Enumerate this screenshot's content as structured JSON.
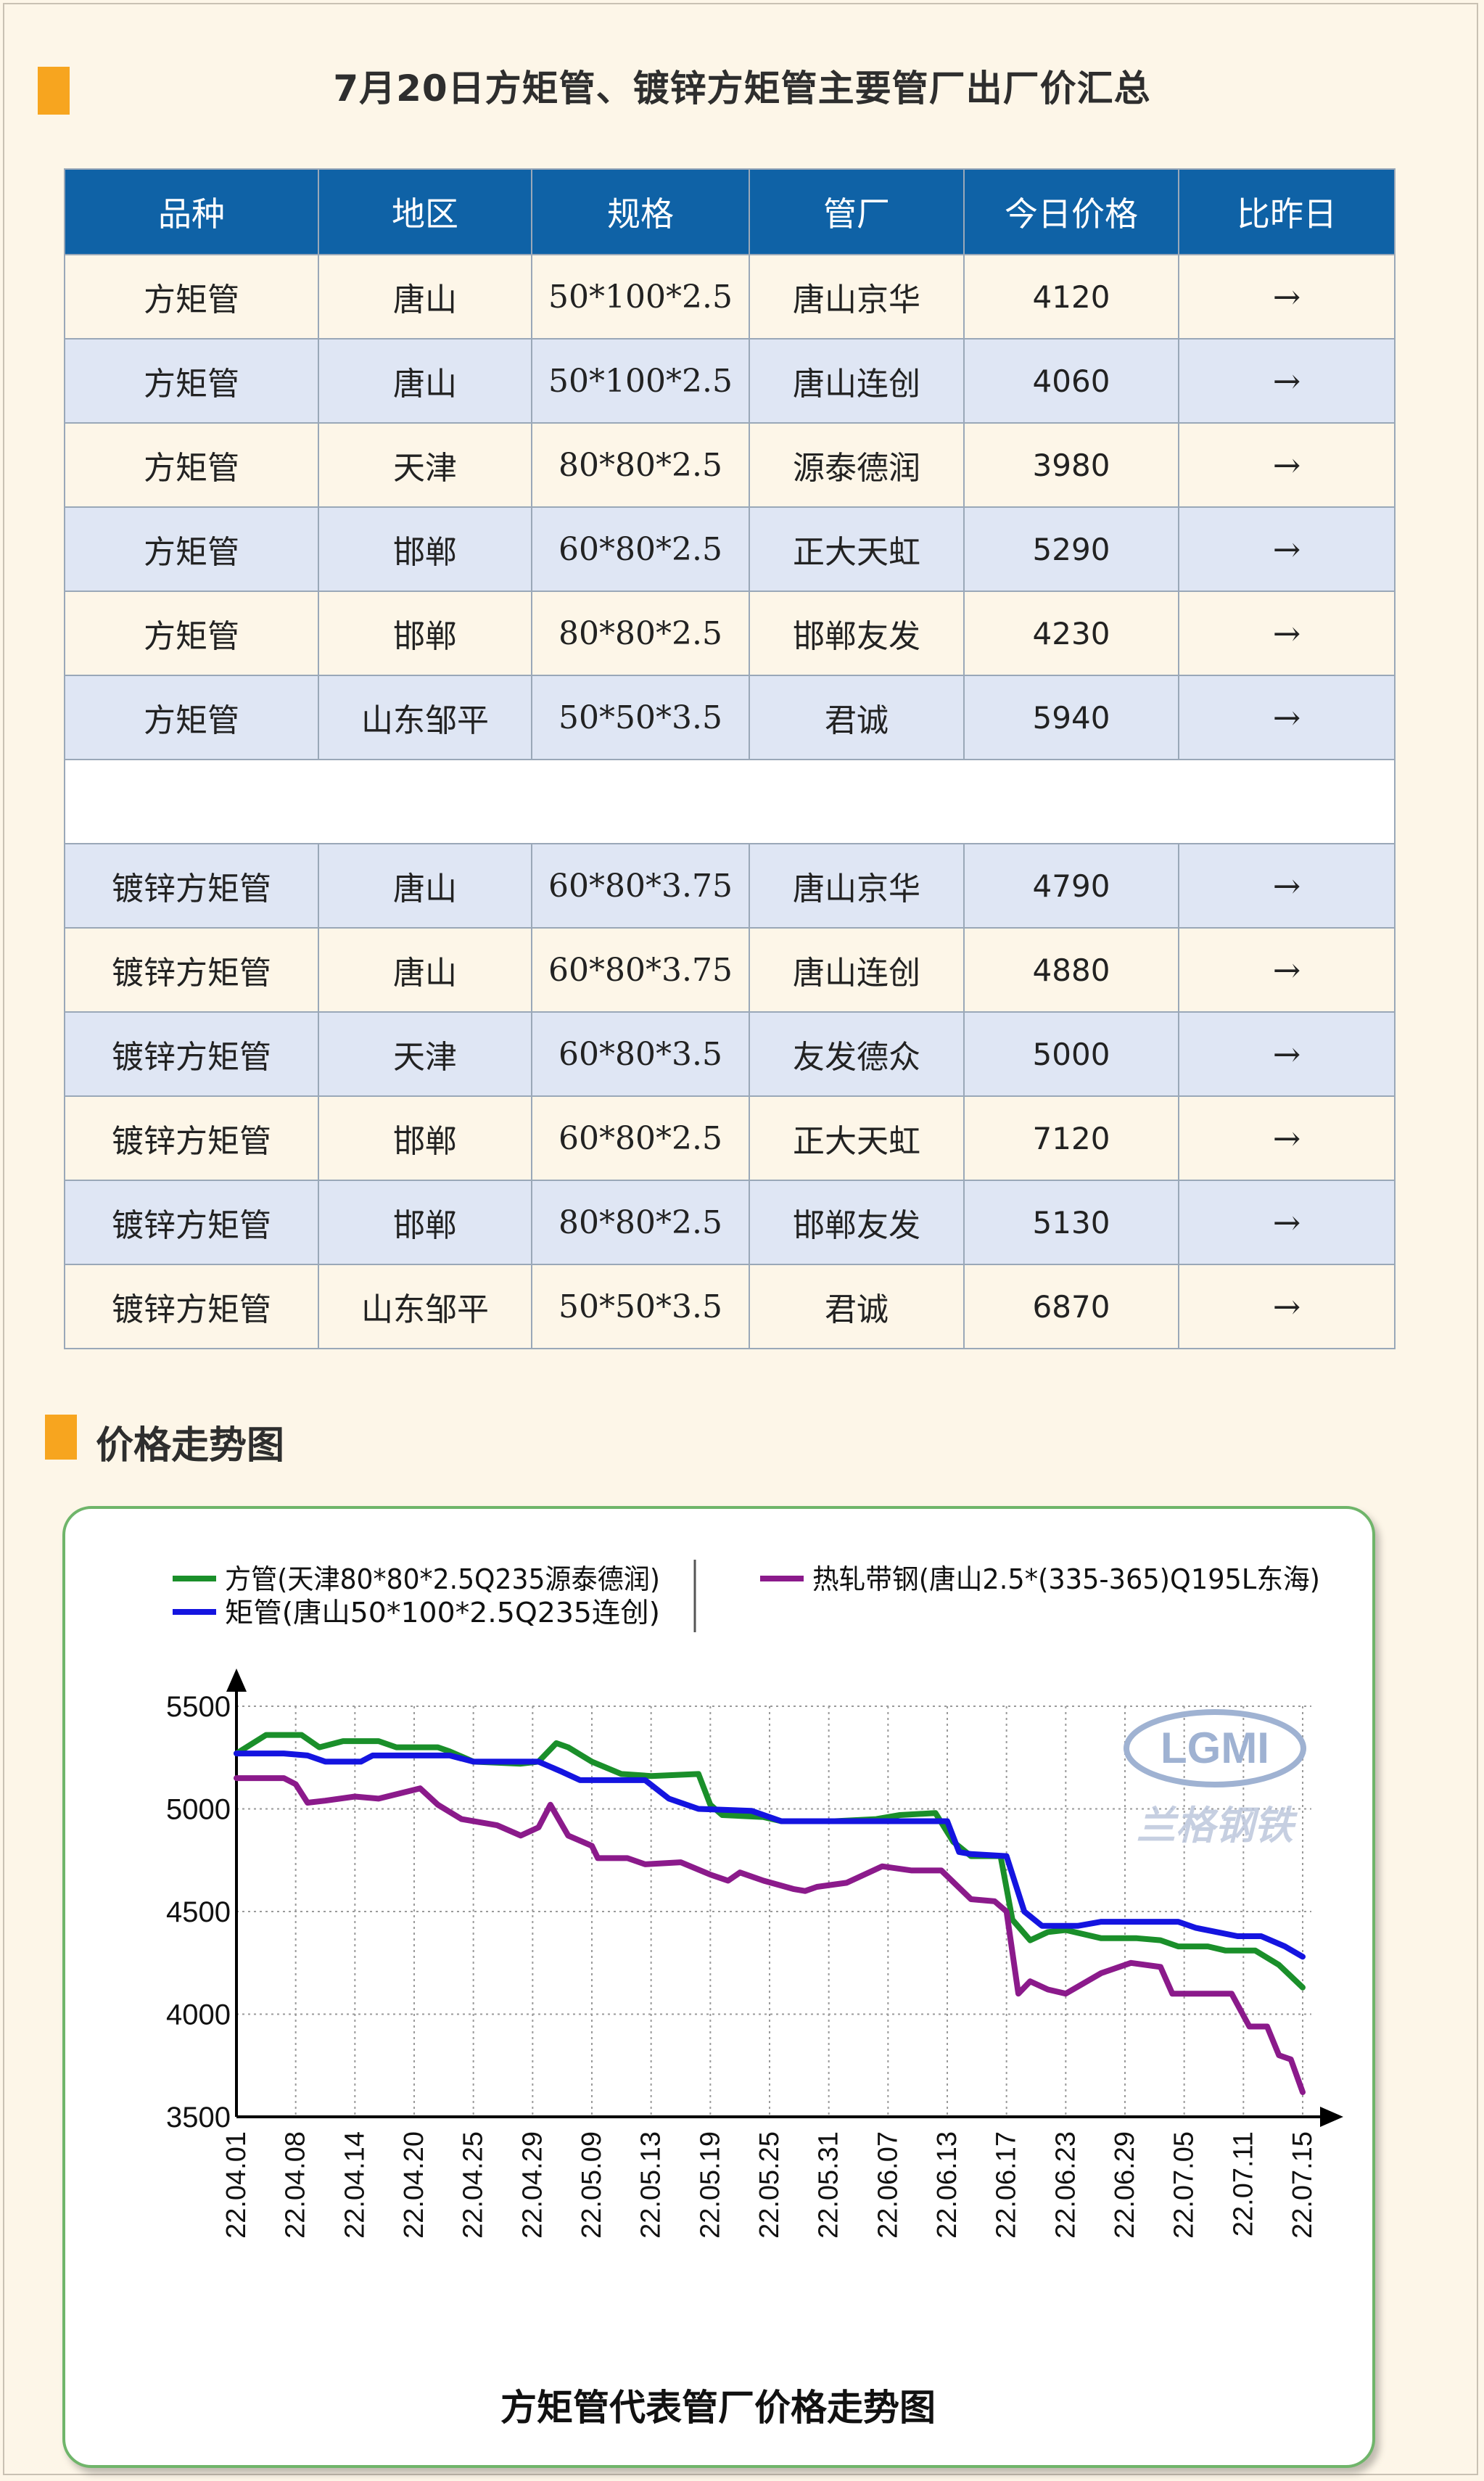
{
  "header": {
    "title": "7月20日方矩管、镀锌方矩管主要管厂出厂价汇总"
  },
  "table": {
    "headers": [
      "品种",
      "地区",
      "规格",
      "管厂",
      "今日价格",
      "比昨日"
    ],
    "rows": [
      [
        "方矩管",
        "唐山",
        "50*100*2.5",
        "唐山京华",
        "4120",
        "→"
      ],
      [
        "方矩管",
        "唐山",
        "50*100*2.5",
        "唐山连创",
        "4060",
        "→"
      ],
      [
        "方矩管",
        "天津",
        "80*80*2.5",
        "源泰德润",
        "3980",
        "→"
      ],
      [
        "方矩管",
        "邯郸",
        "60*80*2.5",
        "正大天虹",
        "5290",
        "→"
      ],
      [
        "方矩管",
        "邯郸",
        "80*80*2.5",
        "邯郸友发",
        "4230",
        "→"
      ],
      [
        "方矩管",
        "山东邹平",
        "50*50*3.5",
        "君诚",
        "5940",
        "→"
      ],
      [
        "镀锌方矩管",
        "唐山",
        "60*80*3.75",
        "唐山京华",
        "4790",
        "→"
      ],
      [
        "镀锌方矩管",
        "唐山",
        "60*80*3.75",
        "唐山连创",
        "4880",
        "→"
      ],
      [
        "镀锌方矩管",
        "天津",
        "60*80*3.5",
        "友发德众",
        "5000",
        "→"
      ],
      [
        "镀锌方矩管",
        "邯郸",
        "60*80*2.5",
        "正大天虹",
        "7120",
        "→"
      ],
      [
        "镀锌方矩管",
        "邯郸",
        "80*80*2.5",
        "邯郸友发",
        "5130",
        "→"
      ],
      [
        "镀锌方矩管",
        "山东邹平",
        "50*50*3.5",
        "君诚",
        "6870",
        "→"
      ]
    ]
  },
  "section2": {
    "title": "价格走势图"
  },
  "chart_data": {
    "type": "line",
    "title": "方矩管代表管厂价格走势图",
    "watermark": {
      "logo": "LGMI",
      "text": "兰格钢铁"
    },
    "ylim": [
      3500,
      5500
    ],
    "yticks": [
      "5500",
      "5000",
      "4500",
      "4000",
      "3500"
    ],
    "xticks": [
      "22.04.01",
      "22.04.08",
      "22.04.14",
      "22.04.20",
      "22.04.25",
      "22.04.29",
      "22.05.09",
      "22.05.13",
      "22.05.19",
      "22.05.25",
      "22.05.31",
      "22.06.07",
      "22.06.13",
      "22.06.17",
      "22.06.23",
      "22.06.29",
      "22.07.05",
      "22.07.11",
      "22.07.15"
    ],
    "grid": true,
    "legend_position": "top",
    "series": [
      {
        "name": "方管(天津80*80*2.5Q235源泰德润)",
        "color": "#1a8f2a",
        "values": [
          [
            0,
            5270
          ],
          [
            0.5,
            5360
          ],
          [
            1.1,
            5360
          ],
          [
            1.4,
            5300
          ],
          [
            1.8,
            5330
          ],
          [
            2.4,
            5330
          ],
          [
            2.7,
            5300
          ],
          [
            3.4,
            5300
          ],
          [
            3.6,
            5280
          ],
          [
            4,
            5230
          ],
          [
            4.8,
            5220
          ],
          [
            5.1,
            5230
          ],
          [
            5.4,
            5320
          ],
          [
            5.6,
            5300
          ],
          [
            6,
            5230
          ],
          [
            6.5,
            5170
          ],
          [
            7,
            5160
          ],
          [
            7.8,
            5170
          ],
          [
            8,
            5020
          ],
          [
            8.2,
            4970
          ],
          [
            8.9,
            4960
          ],
          [
            9.2,
            4940
          ],
          [
            10.1,
            4940
          ],
          [
            10.8,
            4950
          ],
          [
            11.2,
            4970
          ],
          [
            11.8,
            4980
          ],
          [
            12.1,
            4840
          ],
          [
            12.4,
            4770
          ],
          [
            12.9,
            4770
          ],
          [
            13.1,
            4460
          ],
          [
            13.4,
            4360
          ],
          [
            13.7,
            4400
          ],
          [
            14,
            4410
          ],
          [
            14.6,
            4370
          ],
          [
            15.2,
            4370
          ],
          [
            15.6,
            4360
          ],
          [
            15.9,
            4330
          ],
          [
            16.4,
            4330
          ],
          [
            16.7,
            4310
          ],
          [
            17.2,
            4310
          ],
          [
            17.6,
            4240
          ],
          [
            18,
            4130
          ]
        ]
      },
      {
        "name": "矩管(唐山50*100*2.5Q235连创)",
        "color": "#1414e0",
        "values": [
          [
            0,
            5270
          ],
          [
            0.8,
            5270
          ],
          [
            1.2,
            5260
          ],
          [
            1.5,
            5230
          ],
          [
            2.1,
            5230
          ],
          [
            2.3,
            5260
          ],
          [
            3.6,
            5260
          ],
          [
            4,
            5230
          ],
          [
            5.1,
            5230
          ],
          [
            5.5,
            5180
          ],
          [
            5.8,
            5140
          ],
          [
            6.9,
            5140
          ],
          [
            7.3,
            5050
          ],
          [
            7.8,
            5000
          ],
          [
            8.7,
            4990
          ],
          [
            9.2,
            4940
          ],
          [
            12,
            4940
          ],
          [
            12.2,
            4790
          ],
          [
            12.4,
            4780
          ],
          [
            13,
            4770
          ],
          [
            13.3,
            4500
          ],
          [
            13.6,
            4430
          ],
          [
            14.2,
            4430
          ],
          [
            14.6,
            4450
          ],
          [
            15.9,
            4450
          ],
          [
            16.2,
            4420
          ],
          [
            16.9,
            4380
          ],
          [
            17.3,
            4380
          ],
          [
            17.7,
            4330
          ],
          [
            18,
            4280
          ]
        ]
      },
      {
        "name": "热轧带钢(唐山2.5*(335-365)Q195L东海)",
        "color": "#8b1a8b",
        "values": [
          [
            0,
            5150
          ],
          [
            0.8,
            5150
          ],
          [
            1,
            5120
          ],
          [
            1.2,
            5030
          ],
          [
            1.5,
            5040
          ],
          [
            2,
            5060
          ],
          [
            2.4,
            5050
          ],
          [
            3.1,
            5100
          ],
          [
            3.4,
            5020
          ],
          [
            3.8,
            4950
          ],
          [
            4.4,
            4920
          ],
          [
            4.8,
            4870
          ],
          [
            5.1,
            4910
          ],
          [
            5.3,
            5020
          ],
          [
            5.6,
            4870
          ],
          [
            6,
            4820
          ],
          [
            6.1,
            4760
          ],
          [
            6.6,
            4760
          ],
          [
            6.9,
            4730
          ],
          [
            7.5,
            4740
          ],
          [
            8,
            4680
          ],
          [
            8.3,
            4650
          ],
          [
            8.5,
            4690
          ],
          [
            8.9,
            4650
          ],
          [
            9.4,
            4610
          ],
          [
            9.6,
            4600
          ],
          [
            9.8,
            4620
          ],
          [
            10.3,
            4640
          ],
          [
            10.9,
            4720
          ],
          [
            11.4,
            4700
          ],
          [
            11.9,
            4700
          ],
          [
            12.4,
            4560
          ],
          [
            12.8,
            4550
          ],
          [
            13.0,
            4500
          ],
          [
            13.2,
            4100
          ],
          [
            13.4,
            4160
          ],
          [
            13.7,
            4120
          ],
          [
            14.0,
            4100
          ],
          [
            14.6,
            4200
          ],
          [
            15.1,
            4250
          ],
          [
            15.6,
            4230
          ],
          [
            15.8,
            4100
          ],
          [
            16.2,
            4100
          ],
          [
            16.8,
            4100
          ],
          [
            17.1,
            3940
          ],
          [
            17.4,
            3940
          ],
          [
            17.6,
            3800
          ],
          [
            17.8,
            3780
          ],
          [
            18,
            3620
          ]
        ]
      }
    ]
  }
}
